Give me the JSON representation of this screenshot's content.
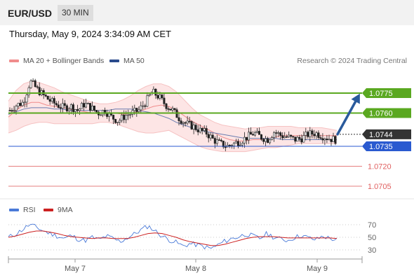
{
  "header": {
    "pair": "EUR/USD",
    "timeframe": "30 MIN"
  },
  "datetime": "Thursday, May 9, 2024 3:34:09 AM CET",
  "credit": "Research © 2024 Trading Central",
  "colors": {
    "bollinger": "#f08c8c",
    "ma50": "#2a4a8c",
    "resistance": "#5aa820",
    "support": "#2a5ad0",
    "support_red": "#e06060",
    "arrow": "#2a5a9c",
    "price_box": "#333333",
    "rsi": "#4a7ad8",
    "rsi_ma": "#cc2020"
  },
  "chart_data": [
    {
      "type": "candlestick",
      "legend": [
        "MA 20 + Bollinger Bands",
        "MA 50"
      ],
      "x_ticks": [
        "May 7",
        "May 8",
        "May 9"
      ],
      "y_range": [
        1.0695,
        1.0795
      ],
      "current_price": 1.0744,
      "levels": [
        {
          "value": 1.0775,
          "label": "1.0775",
          "role": "resistance"
        },
        {
          "value": 1.076,
          "label": "1.0760",
          "role": "resistance"
        },
        {
          "value": 1.0735,
          "label": "1.0735",
          "role": "support"
        },
        {
          "value": 1.072,
          "label": "1.0720",
          "role": "support"
        },
        {
          "value": 1.0705,
          "label": "1.0705",
          "role": "support"
        }
      ],
      "current_price_label": "1.0744",
      "forecast": {
        "from": 1.0744,
        "to": 1.0775,
        "direction": "up"
      },
      "close_path": [
        1.0762,
        1.0766,
        1.0768,
        1.0784,
        1.0778,
        1.0773,
        1.0769,
        1.0766,
        1.0764,
        1.0765,
        1.0762,
        1.0767,
        1.0764,
        1.076,
        1.0762,
        1.0757,
        1.0754,
        1.0758,
        1.076,
        1.0762,
        1.0768,
        1.0776,
        1.0772,
        1.0766,
        1.0762,
        1.0756,
        1.0752,
        1.075,
        1.0747,
        1.0745,
        1.074,
        1.0737,
        1.0735,
        1.0737,
        1.0739,
        1.0742,
        1.0745,
        1.0742,
        1.074,
        1.0746,
        1.0743,
        1.0742,
        1.074,
        1.0741,
        1.0744,
        1.0745,
        1.0743,
        1.0741,
        1.074
      ],
      "ma20_path": [
        1.0757,
        1.0762,
        1.0766,
        1.0768,
        1.0768,
        1.0766,
        1.0765,
        1.0764,
        1.0763,
        1.0762,
        1.0761,
        1.076,
        1.076,
        1.076,
        1.076,
        1.0759,
        1.076,
        1.0761,
        1.0763,
        1.0765,
        1.0766,
        1.0765,
        1.0762,
        1.0758,
        1.0754,
        1.0751,
        1.0748,
        1.0745,
        1.0742,
        1.074,
        1.0739,
        1.0739,
        1.074,
        1.074,
        1.0741,
        1.0742,
        1.0743,
        1.0743,
        1.0743,
        1.0743,
        1.0743,
        1.0743,
        1.0743,
        1.0743
      ],
      "ma50_path": [
        1.0759,
        1.0761,
        1.0763,
        1.0764,
        1.0764,
        1.0764,
        1.0763,
        1.0763,
        1.0762,
        1.0762,
        1.0762,
        1.0762,
        1.0762,
        1.0762,
        1.0763,
        1.0763,
        1.0763,
        1.0762,
        1.0761,
        1.076,
        1.0758,
        1.0756,
        1.0753,
        1.0751,
        1.0749,
        1.0747,
        1.0746,
        1.0745,
        1.0744,
        1.0743,
        1.0742,
        1.0741,
        1.0741,
        1.0741,
        1.0741,
        1.0741,
        1.074,
        1.074,
        1.074,
        1.074,
        1.074,
        1.074,
        1.074,
        1.074
      ],
      "bb_upper": [
        1.0769,
        1.0777,
        1.0782,
        1.0784,
        1.0783,
        1.0781,
        1.0779,
        1.0776,
        1.0774,
        1.0772,
        1.077,
        1.0768,
        1.0767,
        1.0767,
        1.0768,
        1.077,
        1.0773,
        1.0777,
        1.078,
        1.0782,
        1.0782,
        1.078,
        1.0776,
        1.077,
        1.0764,
        1.0759,
        1.0756,
        1.0753,
        1.0751,
        1.075,
        1.0749,
        1.0748,
        1.0749,
        1.0749,
        1.075,
        1.075,
        1.075,
        1.075,
        1.0749,
        1.0749,
        1.0749,
        1.0749,
        1.0748,
        1.0747
      ],
      "bb_lower": [
        1.0745,
        1.0747,
        1.075,
        1.0752,
        1.0753,
        1.0753,
        1.0752,
        1.0752,
        1.0752,
        1.0752,
        1.0752,
        1.0752,
        1.0753,
        1.0753,
        1.0752,
        1.075,
        1.0748,
        1.0746,
        1.0745,
        1.0745,
        1.0746,
        1.0747,
        1.0744,
        1.0741,
        1.0738,
        1.0735,
        1.0733,
        1.0732,
        1.0731,
        1.0731,
        1.0731,
        1.0731,
        1.0732,
        1.0733,
        1.0734,
        1.0734,
        1.0735,
        1.0736,
        1.0737,
        1.0737,
        1.0737,
        1.0737,
        1.0737,
        1.0737
      ]
    },
    {
      "type": "line",
      "title": "",
      "legend": [
        "RSI",
        "9MA"
      ],
      "y_ticks": [
        70,
        50,
        30
      ],
      "y_range": [
        20,
        80
      ],
      "rsi": [
        50,
        55,
        62,
        70,
        66,
        60,
        56,
        52,
        48,
        53,
        47,
        45,
        50,
        46,
        52,
        48,
        43,
        49,
        55,
        62,
        68,
        60,
        52,
        46,
        42,
        36,
        40,
        38,
        35,
        32,
        38,
        44,
        48,
        51,
        55,
        52,
        48,
        56,
        50,
        47,
        45,
        50,
        53,
        49,
        46,
        52,
        48,
        46
      ],
      "rsi_ma": [
        50,
        52,
        55,
        58,
        60,
        60,
        58,
        56,
        53,
        51,
        50,
        49,
        48,
        49,
        49,
        48,
        48,
        48,
        50,
        53,
        56,
        57,
        56,
        53,
        50,
        46,
        43,
        41,
        39,
        37,
        37,
        39,
        42,
        45,
        48,
        50,
        51,
        51,
        51,
        50,
        49,
        49,
        49,
        49,
        49,
        49,
        49,
        48
      ]
    }
  ]
}
